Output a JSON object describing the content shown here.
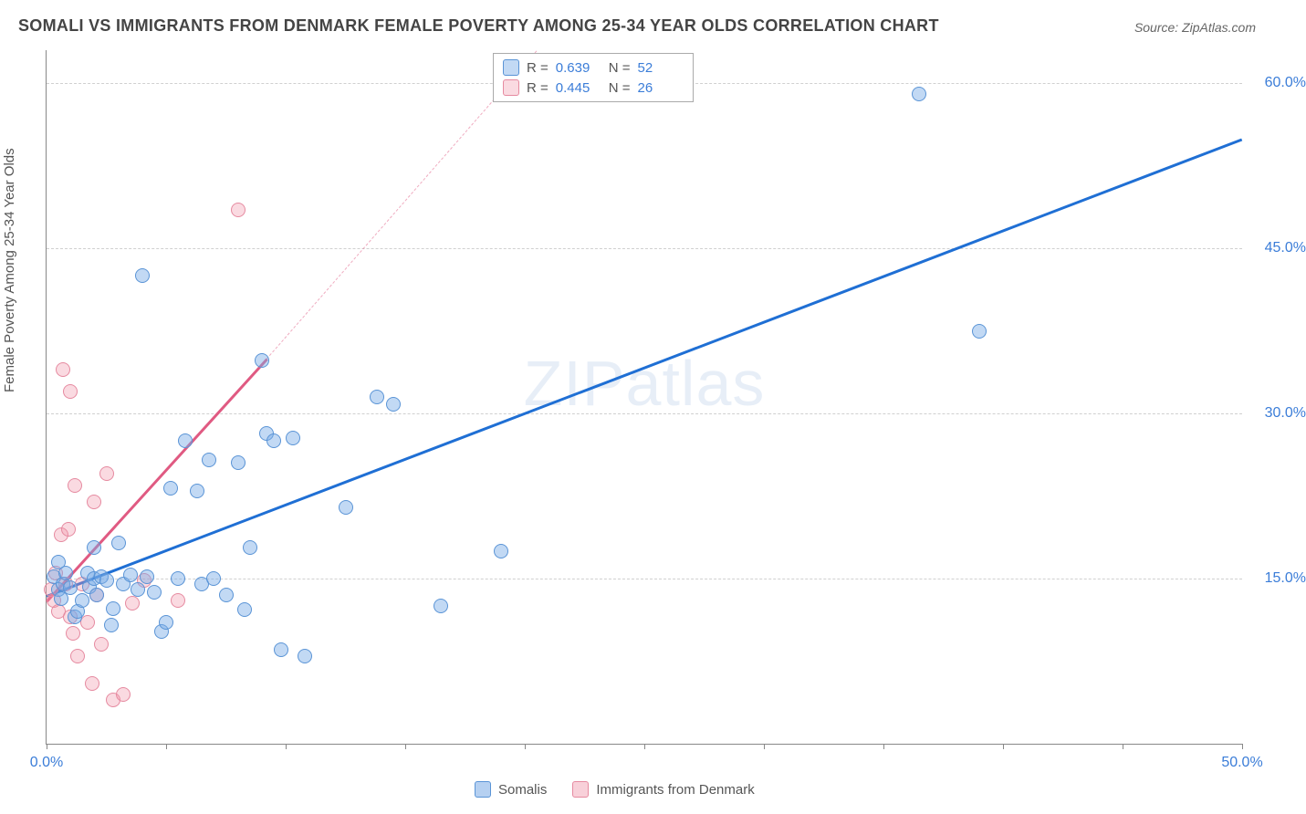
{
  "title": "SOMALI VS IMMIGRANTS FROM DENMARK FEMALE POVERTY AMONG 25-34 YEAR OLDS CORRELATION CHART",
  "source": "Source: ZipAtlas.com",
  "ylabel": "Female Poverty Among 25-34 Year Olds",
  "watermark_bold": "ZIP",
  "watermark_thin": "atlas",
  "chart": {
    "type": "scatter",
    "background_color": "#ffffff",
    "grid_color": "#d0d0d0",
    "axis_color": "#888888",
    "tick_label_color": "#3b7dd8",
    "tick_fontsize": 16,
    "title_fontsize": 18,
    "title_color": "#444444",
    "label_fontsize": 15,
    "point_radius": 8,
    "point_border_width": 1.5,
    "xlim": [
      0,
      50
    ],
    "ylim": [
      0,
      63
    ],
    "x_ticks": [
      0,
      5,
      10,
      15,
      20,
      25,
      30,
      35,
      40,
      45,
      50
    ],
    "x_tick_labels": {
      "0": "0.0%",
      "50": "50.0%"
    },
    "y_ticks": [
      15,
      30,
      45,
      60
    ],
    "y_tick_labels": {
      "15": "15.0%",
      "30": "30.0%",
      "45": "45.0%",
      "60": "60.0%"
    },
    "series": [
      {
        "name": "Somalis",
        "fill_color": "rgba(120,170,230,0.45)",
        "stroke_color": "#5a94d6",
        "trend_color": "#1f6fd4",
        "trend_width": 2.5,
        "trend_start": [
          0,
          13.5
        ],
        "trend_end": [
          50,
          55
        ],
        "trend_dash": null,
        "r": "0.639",
        "n": "52",
        "points": [
          [
            0.3,
            15.2
          ],
          [
            0.5,
            14.0
          ],
          [
            0.5,
            16.5
          ],
          [
            0.6,
            13.2
          ],
          [
            0.7,
            14.5
          ],
          [
            0.8,
            15.5
          ],
          [
            1.0,
            14.2
          ],
          [
            1.2,
            11.5
          ],
          [
            1.3,
            12.0
          ],
          [
            1.5,
            13.0
          ],
          [
            1.7,
            15.5
          ],
          [
            1.8,
            14.3
          ],
          [
            2.0,
            15.0
          ],
          [
            2.0,
            17.8
          ],
          [
            2.1,
            13.5
          ],
          [
            2.3,
            15.2
          ],
          [
            2.5,
            14.8
          ],
          [
            2.7,
            10.8
          ],
          [
            2.8,
            12.3
          ],
          [
            3.0,
            18.2
          ],
          [
            3.2,
            14.5
          ],
          [
            3.5,
            15.3
          ],
          [
            3.8,
            14.0
          ],
          [
            4.0,
            42.5
          ],
          [
            4.2,
            15.2
          ],
          [
            4.5,
            13.8
          ],
          [
            4.8,
            10.2
          ],
          [
            5.0,
            11.0
          ],
          [
            5.2,
            23.2
          ],
          [
            5.5,
            15.0
          ],
          [
            5.8,
            27.5
          ],
          [
            6.3,
            23.0
          ],
          [
            6.5,
            14.5
          ],
          [
            6.8,
            25.8
          ],
          [
            7.0,
            15.0
          ],
          [
            7.5,
            13.5
          ],
          [
            8.0,
            25.5
          ],
          [
            8.3,
            12.2
          ],
          [
            8.5,
            17.8
          ],
          [
            9.0,
            34.8
          ],
          [
            9.2,
            28.2
          ],
          [
            9.5,
            27.5
          ],
          [
            9.8,
            8.5
          ],
          [
            10.3,
            27.8
          ],
          [
            10.8,
            8.0
          ],
          [
            12.5,
            21.5
          ],
          [
            13.8,
            31.5
          ],
          [
            14.5,
            30.8
          ],
          [
            16.5,
            12.5
          ],
          [
            19.0,
            17.5
          ],
          [
            36.5,
            59.0
          ],
          [
            39.0,
            37.5
          ]
        ]
      },
      {
        "name": "Immigrants from Denmark",
        "fill_color": "rgba(240,150,170,0.35)",
        "stroke_color": "#e68aa0",
        "trend_color": "#e05a82",
        "trend_width": 2.5,
        "trend_start": [
          0,
          13.0
        ],
        "trend_end": [
          9.2,
          35.0
        ],
        "trend_dash_start": [
          9.2,
          35.0
        ],
        "trend_dash_end": [
          20.5,
          63.0
        ],
        "r": "0.445",
        "n": "26",
        "points": [
          [
            0.2,
            14.0
          ],
          [
            0.3,
            13.0
          ],
          [
            0.4,
            15.5
          ],
          [
            0.5,
            12.0
          ],
          [
            0.6,
            19.0
          ],
          [
            0.7,
            34.0
          ],
          [
            0.8,
            14.5
          ],
          [
            0.9,
            19.5
          ],
          [
            1.0,
            11.5
          ],
          [
            1.0,
            32.0
          ],
          [
            1.1,
            10.0
          ],
          [
            1.2,
            23.5
          ],
          [
            1.3,
            8.0
          ],
          [
            1.5,
            14.5
          ],
          [
            1.7,
            11.0
          ],
          [
            1.9,
            5.5
          ],
          [
            2.0,
            22.0
          ],
          [
            2.1,
            13.5
          ],
          [
            2.3,
            9.0
          ],
          [
            2.5,
            24.5
          ],
          [
            2.8,
            4.0
          ],
          [
            3.2,
            4.5
          ],
          [
            3.6,
            12.8
          ],
          [
            4.1,
            14.8
          ],
          [
            5.5,
            13.0
          ],
          [
            8.0,
            48.5
          ]
        ]
      }
    ]
  },
  "legend_top": {
    "r_label": "R =",
    "n_label": "N ="
  },
  "legend_bottom": [
    {
      "label": "Somalis",
      "fill": "rgba(120,170,230,0.55)",
      "stroke": "#5a94d6"
    },
    {
      "label": "Immigrants from Denmark",
      "fill": "rgba(240,150,170,0.45)",
      "stroke": "#e68aa0"
    }
  ]
}
